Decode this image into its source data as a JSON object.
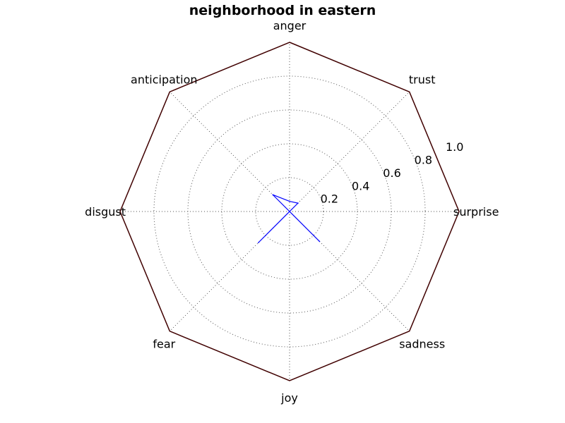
{
  "chart_data": {
    "type": "radar",
    "title": "neighborhood in eastern",
    "axes": [
      "anger",
      "trust",
      "surprise",
      "sadness",
      "joy",
      "fear",
      "disgust",
      "anticipation"
    ],
    "series": [
      {
        "values": [
          0.06,
          0.07,
          0.0,
          0.25,
          0.0,
          0.26,
          0.0,
          0.14
        ]
      }
    ],
    "rlim": [
      0,
      1.0
    ],
    "rticks": [
      "0.2",
      "0.4",
      "0.6",
      "0.8",
      "1.0"
    ],
    "grid": true,
    "colors": {
      "series": "#0000ff",
      "frame": "#400000",
      "grid": "#555555"
    }
  }
}
